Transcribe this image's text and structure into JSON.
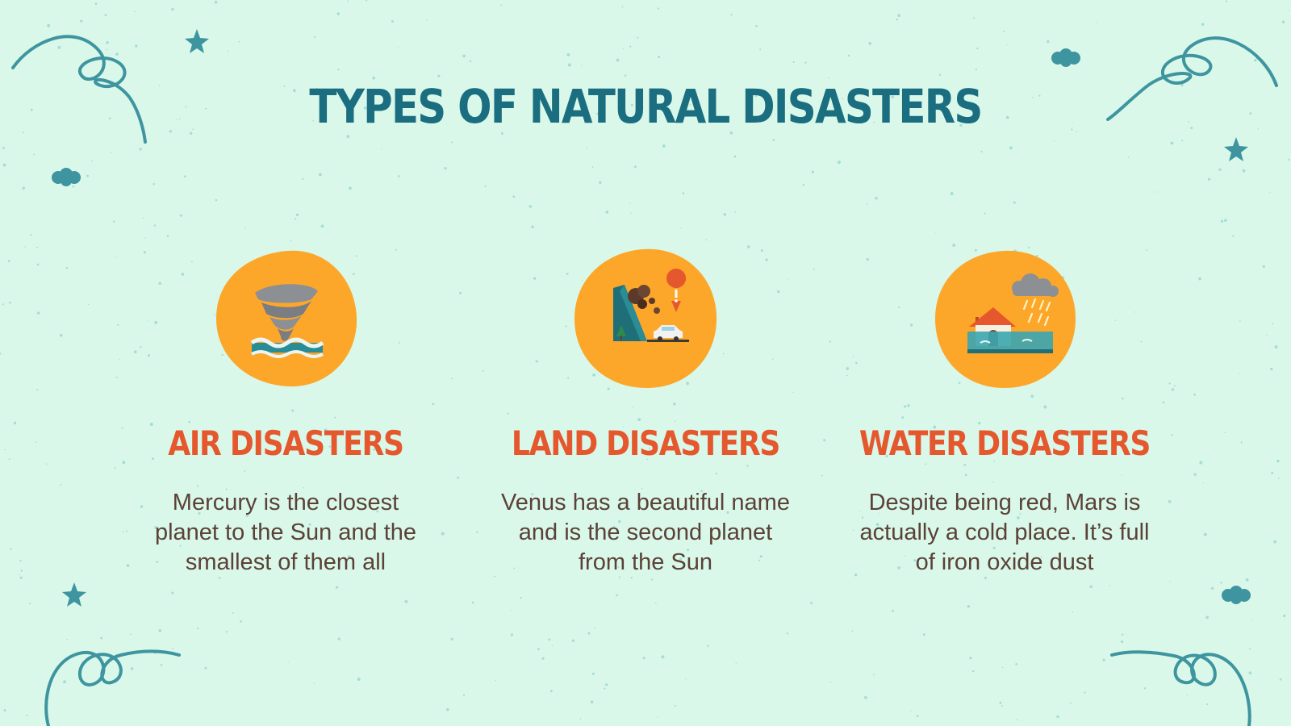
{
  "slide": {
    "title": "TYPES OF NATURAL DISASTERS",
    "colors": {
      "background": "#d9f8ea",
      "title": "#1a6e80",
      "heading": "#e5572c",
      "body_text": "#5b4136",
      "blob": "#fca72a",
      "decoration": "#3e95a0"
    },
    "cards": [
      {
        "icon": "tornado-icon",
        "heading": "AIR DISASTERS",
        "text": "Mercury is the closest planet to the Sun and the smallest of them all"
      },
      {
        "icon": "landslide-icon",
        "heading": "LAND DISASTERS",
        "text": "Venus has a beautiful name and is the second planet from the Sun"
      },
      {
        "icon": "flood-icon",
        "heading": "WATER DISASTERS",
        "text": "Despite being red, Mars is actually a cold place. It’s full of iron oxide dust"
      }
    ]
  }
}
